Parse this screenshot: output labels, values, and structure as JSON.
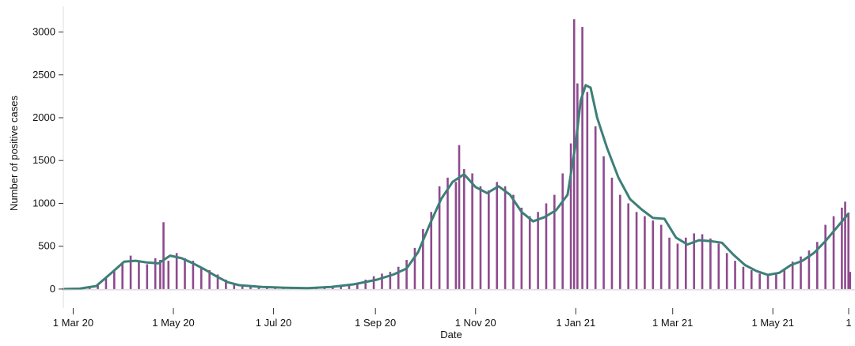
{
  "chart_data": {
    "type": "bar",
    "title": "",
    "xlabel": "Date",
    "ylabel": "Number of positive cases",
    "x_range": [
      "2020-02-24",
      "2021-06-20"
    ],
    "ylim": [
      -130,
      3300
    ],
    "y_ticks": [
      0,
      500,
      1000,
      1500,
      2000,
      2500,
      3000
    ],
    "x_ticks": [
      {
        "date": "2020-03-01",
        "label": "1 Mar 20"
      },
      {
        "date": "2020-05-01",
        "label": "1 May 20"
      },
      {
        "date": "2020-07-01",
        "label": "1 Jul 20"
      },
      {
        "date": "2020-09-01",
        "label": "1 Sep 20"
      },
      {
        "date": "2020-11-01",
        "label": "1 Nov 20"
      },
      {
        "date": "2021-01-01",
        "label": "1 Jan 21"
      },
      {
        "date": "2021-03-01",
        "label": "1 Mar 21"
      },
      {
        "date": "2021-05-01",
        "label": "1 May 21"
      },
      {
        "date": "2021-07-01",
        "label": "1"
      }
    ],
    "grid": false,
    "legend": "none",
    "series": [
      {
        "type": "bar",
        "color": "#8e4a8e",
        "values": [
          [
            "2020-02-26",
            2
          ],
          [
            "2020-03-01",
            5
          ],
          [
            "2020-03-06",
            15
          ],
          [
            "2020-03-11",
            30
          ],
          [
            "2020-03-16",
            60
          ],
          [
            "2020-03-21",
            130
          ],
          [
            "2020-03-26",
            220
          ],
          [
            "2020-03-31",
            310
          ],
          [
            "2020-04-05",
            390
          ],
          [
            "2020-04-10",
            330
          ],
          [
            "2020-04-15",
            290
          ],
          [
            "2020-04-20",
            360
          ],
          [
            "2020-04-23",
            340
          ],
          [
            "2020-04-25",
            780
          ],
          [
            "2020-04-28",
            330
          ],
          [
            "2020-05-03",
            420
          ],
          [
            "2020-05-08",
            360
          ],
          [
            "2020-05-13",
            330
          ],
          [
            "2020-05-18",
            260
          ],
          [
            "2020-05-23",
            220
          ],
          [
            "2020-05-28",
            170
          ],
          [
            "2020-06-02",
            110
          ],
          [
            "2020-06-07",
            70
          ],
          [
            "2020-06-12",
            50
          ],
          [
            "2020-06-17",
            35
          ],
          [
            "2020-06-22",
            28
          ],
          [
            "2020-06-27",
            22
          ],
          [
            "2020-07-02",
            18
          ],
          [
            "2020-07-07",
            15
          ],
          [
            "2020-07-12",
            12
          ],
          [
            "2020-07-17",
            10
          ],
          [
            "2020-07-22",
            10
          ],
          [
            "2020-07-27",
            12
          ],
          [
            "2020-08-01",
            18
          ],
          [
            "2020-08-06",
            30
          ],
          [
            "2020-08-11",
            45
          ],
          [
            "2020-08-16",
            55
          ],
          [
            "2020-08-21",
            70
          ],
          [
            "2020-08-26",
            110
          ],
          [
            "2020-08-31",
            150
          ],
          [
            "2020-09-05",
            180
          ],
          [
            "2020-09-10",
            200
          ],
          [
            "2020-09-15",
            260
          ],
          [
            "2020-09-20",
            340
          ],
          [
            "2020-09-25",
            480
          ],
          [
            "2020-09-30",
            700
          ],
          [
            "2020-10-05",
            900
          ],
          [
            "2020-10-10",
            1200
          ],
          [
            "2020-10-15",
            1300
          ],
          [
            "2020-10-20",
            1250
          ],
          [
            "2020-10-22",
            1680
          ],
          [
            "2020-10-25",
            1400
          ],
          [
            "2020-10-30",
            1350
          ],
          [
            "2020-11-04",
            1200
          ],
          [
            "2020-11-09",
            1150
          ],
          [
            "2020-11-14",
            1250
          ],
          [
            "2020-11-19",
            1200
          ],
          [
            "2020-11-24",
            1100
          ],
          [
            "2020-11-29",
            950
          ],
          [
            "2020-12-04",
            850
          ],
          [
            "2020-12-09",
            900
          ],
          [
            "2020-12-14",
            1000
          ],
          [
            "2020-12-19",
            1100
          ],
          [
            "2020-12-24",
            1350
          ],
          [
            "2020-12-29",
            1700
          ],
          [
            "2020-12-31",
            3150
          ],
          [
            "2021-01-02",
            2400
          ],
          [
            "2021-01-05",
            3060
          ],
          [
            "2021-01-08",
            2300
          ],
          [
            "2021-01-13",
            1900
          ],
          [
            "2021-01-18",
            1550
          ],
          [
            "2021-01-23",
            1300
          ],
          [
            "2021-01-28",
            1100
          ],
          [
            "2021-02-02",
            1000
          ],
          [
            "2021-02-07",
            900
          ],
          [
            "2021-02-12",
            850
          ],
          [
            "2021-02-17",
            800
          ],
          [
            "2021-02-22",
            750
          ],
          [
            "2021-02-27",
            600
          ],
          [
            "2021-03-04",
            530
          ],
          [
            "2021-03-09",
            600
          ],
          [
            "2021-03-14",
            650
          ],
          [
            "2021-03-19",
            640
          ],
          [
            "2021-03-24",
            590
          ],
          [
            "2021-03-29",
            530
          ],
          [
            "2021-04-03",
            420
          ],
          [
            "2021-04-08",
            330
          ],
          [
            "2021-04-13",
            260
          ],
          [
            "2021-04-18",
            220
          ],
          [
            "2021-04-23",
            180
          ],
          [
            "2021-04-28",
            160
          ],
          [
            "2021-05-03",
            180
          ],
          [
            "2021-05-08",
            240
          ],
          [
            "2021-05-13",
            320
          ],
          [
            "2021-05-18",
            380
          ],
          [
            "2021-05-23",
            450
          ],
          [
            "2021-05-28",
            550
          ],
          [
            "2021-06-02",
            750
          ],
          [
            "2021-06-07",
            850
          ],
          [
            "2021-06-12",
            950
          ],
          [
            "2021-06-14",
            1020
          ],
          [
            "2021-06-16",
            880
          ],
          [
            "2021-06-17",
            200
          ]
        ]
      },
      {
        "type": "line",
        "color": "#3d7f78",
        "values": [
          [
            "2020-02-24",
            0
          ],
          [
            "2020-03-05",
            5
          ],
          [
            "2020-03-15",
            35
          ],
          [
            "2020-03-25",
            200
          ],
          [
            "2020-04-01",
            320
          ],
          [
            "2020-04-08",
            330
          ],
          [
            "2020-04-15",
            310
          ],
          [
            "2020-04-22",
            300
          ],
          [
            "2020-04-29",
            390
          ],
          [
            "2020-05-06",
            360
          ],
          [
            "2020-05-13",
            300
          ],
          [
            "2020-05-20",
            230
          ],
          [
            "2020-05-27",
            150
          ],
          [
            "2020-06-03",
            80
          ],
          [
            "2020-06-10",
            45
          ],
          [
            "2020-06-24",
            25
          ],
          [
            "2020-07-08",
            15
          ],
          [
            "2020-07-22",
            10
          ],
          [
            "2020-08-05",
            25
          ],
          [
            "2020-08-19",
            55
          ],
          [
            "2020-09-02",
            110
          ],
          [
            "2020-09-12",
            170
          ],
          [
            "2020-09-20",
            240
          ],
          [
            "2020-09-27",
            430
          ],
          [
            "2020-10-04",
            750
          ],
          [
            "2020-10-11",
            1050
          ],
          [
            "2020-10-18",
            1250
          ],
          [
            "2020-10-25",
            1340
          ],
          [
            "2020-11-01",
            1190
          ],
          [
            "2020-11-08",
            1120
          ],
          [
            "2020-11-15",
            1200
          ],
          [
            "2020-11-22",
            1100
          ],
          [
            "2020-11-29",
            900
          ],
          [
            "2020-12-06",
            790
          ],
          [
            "2020-12-13",
            840
          ],
          [
            "2020-12-20",
            920
          ],
          [
            "2020-12-27",
            1100
          ],
          [
            "2021-01-01",
            1700
          ],
          [
            "2021-01-04",
            2200
          ],
          [
            "2021-01-07",
            2380
          ],
          [
            "2021-01-10",
            2350
          ],
          [
            "2021-01-14",
            2000
          ],
          [
            "2021-01-20",
            1650
          ],
          [
            "2021-01-27",
            1300
          ],
          [
            "2021-02-03",
            1050
          ],
          [
            "2021-02-10",
            930
          ],
          [
            "2021-02-17",
            830
          ],
          [
            "2021-02-24",
            820
          ],
          [
            "2021-03-03",
            600
          ],
          [
            "2021-03-10",
            520
          ],
          [
            "2021-03-17",
            570
          ],
          [
            "2021-03-24",
            560
          ],
          [
            "2021-03-31",
            540
          ],
          [
            "2021-04-07",
            400
          ],
          [
            "2021-04-14",
            280
          ],
          [
            "2021-04-21",
            210
          ],
          [
            "2021-04-28",
            165
          ],
          [
            "2021-05-05",
            190
          ],
          [
            "2021-05-12",
            280
          ],
          [
            "2021-05-19",
            330
          ],
          [
            "2021-05-26",
            420
          ],
          [
            "2021-06-02",
            560
          ],
          [
            "2021-06-09",
            720
          ],
          [
            "2021-06-16",
            880
          ]
        ]
      }
    ]
  }
}
